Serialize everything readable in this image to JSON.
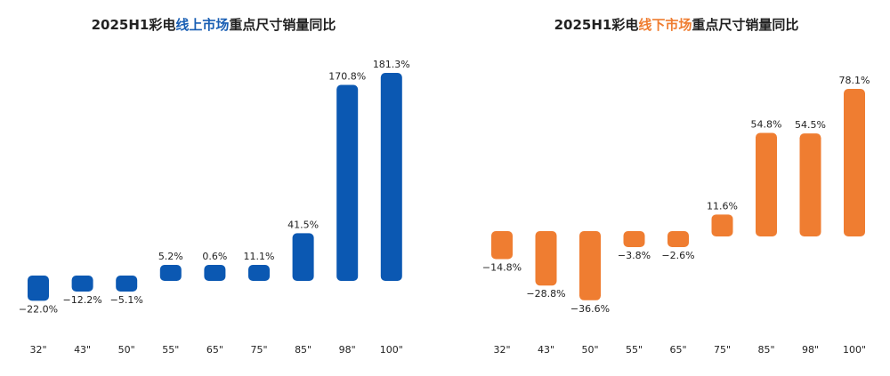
{
  "chart_data": [
    {
      "type": "bar",
      "title": {
        "parts": [
          "2025H1彩电",
          "线上市场",
          "重点尺寸销量同比"
        ],
        "highlight": 1,
        "highlight_color": "#1a5fb4"
      },
      "categories": [
        "32\"",
        "43\"",
        "50\"",
        "55\"",
        "65\"",
        "75\"",
        "85\"",
        "98\"",
        "100\""
      ],
      "values": [
        -22.0,
        -12.2,
        -5.1,
        5.2,
        0.6,
        11.1,
        41.5,
        170.8,
        181.3
      ],
      "value_labels": [
        "−22.0%",
        "−12.2%",
        "−5.1%",
        "5.2%",
        "0.6%",
        "11.1%",
        "41.5%",
        "170.8%",
        "181.3%"
      ],
      "color": "#0b58b2"
    },
    {
      "type": "bar",
      "title": {
        "parts": [
          "2025H1彩电",
          "线下市场",
          "重点尺寸销量同比"
        ],
        "highlight": 1,
        "highlight_color": "#ef7d31"
      },
      "categories": [
        "32\"",
        "43\"",
        "50\"",
        "55\"",
        "65\"",
        "75\"",
        "85\"",
        "98\"",
        "100\""
      ],
      "values": [
        -14.8,
        -28.8,
        -36.6,
        -3.8,
        -2.6,
        11.6,
        54.8,
        54.5,
        78.1
      ],
      "value_labels": [
        "−14.8%",
        "−28.8%",
        "−36.6%",
        "−3.8%",
        "−2.6%",
        "11.6%",
        "54.8%",
        "54.5%",
        "78.1%"
      ],
      "color": "#ef7d31"
    }
  ]
}
